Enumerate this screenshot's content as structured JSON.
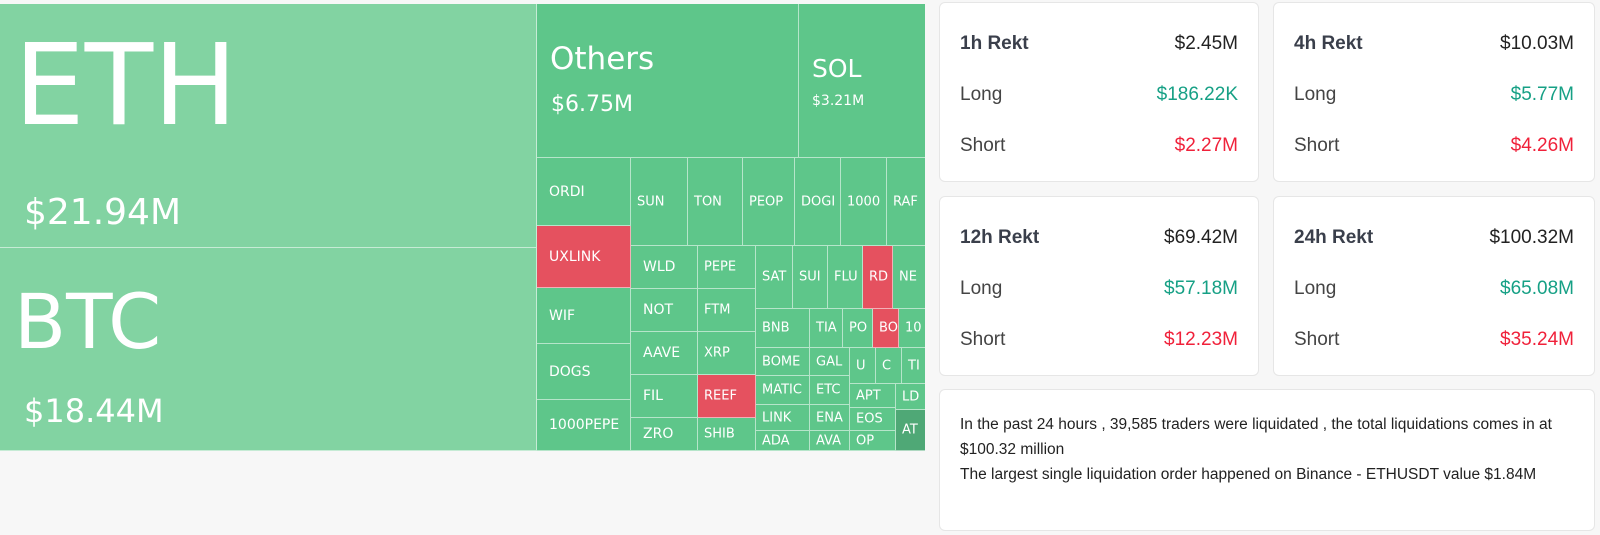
{
  "colors": {
    "up": "#5ec68a",
    "up_light": "#82d3a2",
    "down": "#e5515f",
    "up_dark": "#4fa876"
  },
  "treemap": {
    "eth": {
      "symbol": "ETH",
      "value": "$21.94M"
    },
    "btc": {
      "symbol": "BTC",
      "value": "$18.44M"
    },
    "others": {
      "symbol": "Others",
      "value": "$6.75M"
    },
    "sol": {
      "symbol": "SOL",
      "value": "$3.21M"
    },
    "small": [
      "ORDI",
      "UXLINK",
      "WIF",
      "DOGS",
      "1000PEPE",
      "SUN",
      "TON",
      "PEOP",
      "DOGI",
      "1000",
      "RAF",
      "WLD",
      "PEPE",
      "NOT",
      "FTM",
      "AAVE",
      "XRP",
      "FIL",
      "REEF",
      "ZRO",
      "SHIB",
      "SAT",
      "SUI",
      "FLU",
      "RD",
      "NE",
      "BNB",
      "TIA",
      "PO",
      "BO",
      "10",
      "BOME",
      "GAL",
      "U",
      "C",
      "TI",
      "MATIC",
      "ETC",
      "LINK",
      "ENA",
      "ADA",
      "AVA",
      "APT",
      "LD",
      "EOS",
      "OP",
      "AT"
    ]
  },
  "cards": [
    {
      "title": "1h Rekt",
      "total": "$2.45M",
      "long_label": "Long",
      "long": "$186.22K",
      "short_label": "Short",
      "short": "$2.27M"
    },
    {
      "title": "4h Rekt",
      "total": "$10.03M",
      "long_label": "Long",
      "long": "$5.77M",
      "short_label": "Short",
      "short": "$4.26M"
    },
    {
      "title": "12h Rekt",
      "total": "$69.42M",
      "long_label": "Long",
      "long": "$57.18M",
      "short_label": "Short",
      "short": "$12.23M"
    },
    {
      "title": "24h Rekt",
      "total": "$100.32M",
      "long_label": "Long",
      "long": "$65.08M",
      "short_label": "Short",
      "short": "$35.24M"
    }
  ],
  "summary": {
    "line1": "In the past 24 hours , 39,585 traders were liquidated , the total liquidations comes in at $100.32 million",
    "line2": "The largest single liquidation order happened on Binance - ETHUSDT value $1.84M"
  }
}
